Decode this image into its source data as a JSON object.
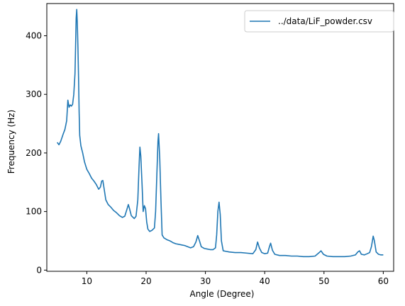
{
  "chart_data": {
    "type": "line",
    "xlabel": "Angle (Degree)",
    "ylabel": "Frequency (Hz)",
    "xlim": [
      3.25,
      61.75
    ],
    "ylim": [
      -2,
      455
    ],
    "xticks": [
      10,
      20,
      30,
      40,
      50,
      60
    ],
    "yticks": [
      0,
      100,
      200,
      300,
      400
    ],
    "grid": false,
    "legend": {
      "placement": "top-right"
    },
    "series": [
      {
        "name": "../data/LiF_powder.csv",
        "color": "#1f77b4",
        "points": [
          [
            5.0,
            218
          ],
          [
            5.3,
            214
          ],
          [
            5.6,
            220
          ],
          [
            6.0,
            232
          ],
          [
            6.3,
            240
          ],
          [
            6.6,
            255
          ],
          [
            6.8,
            290
          ],
          [
            7.0,
            278
          ],
          [
            7.2,
            282
          ],
          [
            7.4,
            280
          ],
          [
            7.6,
            283
          ],
          [
            7.8,
            300
          ],
          [
            8.0,
            335
          ],
          [
            8.1,
            380
          ],
          [
            8.2,
            430
          ],
          [
            8.3,
            445
          ],
          [
            8.4,
            420
          ],
          [
            8.5,
            380
          ],
          [
            8.6,
            330
          ],
          [
            8.7,
            270
          ],
          [
            8.8,
            230
          ],
          [
            9.0,
            212
          ],
          [
            9.3,
            200
          ],
          [
            9.6,
            185
          ],
          [
            10.0,
            172
          ],
          [
            10.4,
            165
          ],
          [
            10.8,
            157
          ],
          [
            11.2,
            152
          ],
          [
            11.6,
            146
          ],
          [
            12.0,
            138
          ],
          [
            12.3,
            142
          ],
          [
            12.5,
            152
          ],
          [
            12.7,
            153
          ],
          [
            12.9,
            140
          ],
          [
            13.2,
            120
          ],
          [
            13.6,
            112
          ],
          [
            14.0,
            108
          ],
          [
            14.5,
            102
          ],
          [
            15.0,
            98
          ],
          [
            15.5,
            93
          ],
          [
            16.0,
            90
          ],
          [
            16.4,
            92
          ],
          [
            16.8,
            105
          ],
          [
            17.0,
            112
          ],
          [
            17.2,
            105
          ],
          [
            17.5,
            93
          ],
          [
            18.0,
            88
          ],
          [
            18.3,
            92
          ],
          [
            18.6,
            120
          ],
          [
            18.8,
            175
          ],
          [
            18.95,
            210
          ],
          [
            19.1,
            195
          ],
          [
            19.3,
            150
          ],
          [
            19.5,
            100
          ],
          [
            19.7,
            110
          ],
          [
            19.9,
            105
          ],
          [
            20.1,
            82
          ],
          [
            20.3,
            70
          ],
          [
            20.6,
            66
          ],
          [
            21.0,
            68
          ],
          [
            21.4,
            72
          ],
          [
            21.6,
            100
          ],
          [
            21.8,
            160
          ],
          [
            22.0,
            220
          ],
          [
            22.1,
            233
          ],
          [
            22.3,
            190
          ],
          [
            22.5,
            120
          ],
          [
            22.7,
            60
          ],
          [
            23.0,
            55
          ],
          [
            23.5,
            52
          ],
          [
            24.0,
            50
          ],
          [
            24.5,
            47
          ],
          [
            25.0,
            45
          ],
          [
            25.5,
            44
          ],
          [
            26.0,
            43
          ],
          [
            26.5,
            42
          ],
          [
            27.0,
            40
          ],
          [
            27.5,
            38
          ],
          [
            28.0,
            40
          ],
          [
            28.4,
            48
          ],
          [
            28.7,
            59
          ],
          [
            29.0,
            50
          ],
          [
            29.3,
            40
          ],
          [
            29.8,
            37
          ],
          [
            30.3,
            36
          ],
          [
            30.8,
            35
          ],
          [
            31.3,
            35
          ],
          [
            31.7,
            38
          ],
          [
            31.9,
            60
          ],
          [
            32.1,
            100
          ],
          [
            32.3,
            116
          ],
          [
            32.5,
            95
          ],
          [
            32.7,
            50
          ],
          [
            33.0,
            33
          ],
          [
            33.5,
            32
          ],
          [
            34.0,
            31
          ],
          [
            35.0,
            30
          ],
          [
            36.0,
            30
          ],
          [
            37.0,
            29
          ],
          [
            38.0,
            28
          ],
          [
            38.5,
            35
          ],
          [
            38.8,
            48
          ],
          [
            39.1,
            38
          ],
          [
            39.5,
            30
          ],
          [
            40.0,
            28
          ],
          [
            40.5,
            29
          ],
          [
            40.8,
            40
          ],
          [
            41.0,
            46
          ],
          [
            41.3,
            34
          ],
          [
            41.7,
            27
          ],
          [
            42.5,
            25
          ],
          [
            43.5,
            25
          ],
          [
            44.5,
            24
          ],
          [
            45.5,
            24
          ],
          [
            46.5,
            23
          ],
          [
            47.5,
            23
          ],
          [
            48.5,
            24
          ],
          [
            49.2,
            30
          ],
          [
            49.5,
            33
          ],
          [
            49.9,
            27
          ],
          [
            50.5,
            24
          ],
          [
            51.5,
            23
          ],
          [
            52.5,
            23
          ],
          [
            53.5,
            23
          ],
          [
            54.5,
            24
          ],
          [
            55.3,
            26
          ],
          [
            55.7,
            31
          ],
          [
            56.0,
            33
          ],
          [
            56.3,
            27
          ],
          [
            56.8,
            26
          ],
          [
            57.3,
            28
          ],
          [
            57.7,
            30
          ],
          [
            58.0,
            40
          ],
          [
            58.3,
            58
          ],
          [
            58.5,
            50
          ],
          [
            58.8,
            31
          ],
          [
            59.2,
            27
          ],
          [
            59.6,
            26
          ],
          [
            60.0,
            26
          ]
        ]
      }
    ]
  }
}
